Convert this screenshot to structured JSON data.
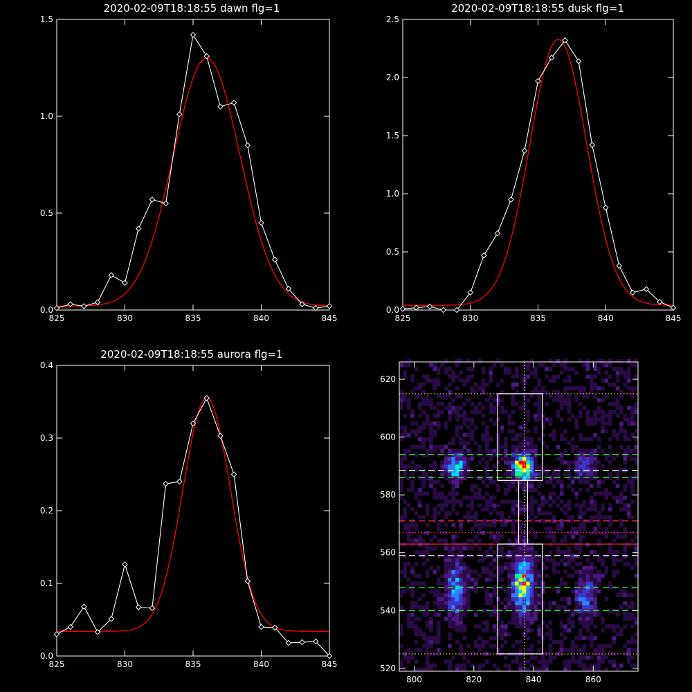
{
  "chart_data": [
    {
      "type": "line",
      "title": "2020-02-09T18:18:55 dawn flg=1",
      "xlim": [
        825,
        845
      ],
      "ylim": [
        0.0,
        1.5
      ],
      "xticks": [
        825,
        830,
        835,
        840,
        845
      ],
      "yticks": [
        "0.0",
        "0.5",
        "1.0",
        "1.5"
      ],
      "series": [
        {
          "kind": "data",
          "color": "#ffffff",
          "markers": "diamond",
          "x": [
            825,
            826,
            827,
            828,
            829,
            830,
            831,
            832,
            833,
            834,
            835,
            836,
            837,
            838,
            839,
            840,
            841,
            842,
            843,
            844,
            845
          ],
          "y": [
            0.01,
            0.03,
            0.02,
            0.04,
            0.18,
            0.14,
            0.42,
            0.57,
            0.55,
            1.01,
            1.42,
            1.31,
            1.05,
            1.07,
            0.85,
            0.45,
            0.26,
            0.11,
            0.03,
            0.01,
            0.02
          ]
        },
        {
          "kind": "fit",
          "color": "#ff0000",
          "shape": "gaussian",
          "amplitude": 1.28,
          "center": 836.0,
          "sigma": 2.45,
          "offset": 0.02
        }
      ]
    },
    {
      "type": "line",
      "title": "2020-02-09T18:18:55 dusk flg=1",
      "xlim": [
        825,
        845
      ],
      "ylim": [
        0.0,
        2.5
      ],
      "xticks": [
        825,
        830,
        835,
        840,
        845
      ],
      "yticks": [
        "0.0",
        "0.5",
        "1.0",
        "1.5",
        "2.0",
        "2.5"
      ],
      "series": [
        {
          "kind": "data",
          "color": "#ffffff",
          "markers": "diamond",
          "x": [
            825,
            826,
            827,
            828,
            829,
            830,
            831,
            832,
            833,
            834,
            835,
            836,
            837,
            838,
            839,
            840,
            841,
            842,
            843,
            844,
            845
          ],
          "y": [
            0.01,
            0.02,
            0.03,
            0.0,
            0.0,
            0.15,
            0.47,
            0.66,
            0.95,
            1.37,
            1.97,
            2.17,
            2.32,
            2.14,
            1.42,
            0.88,
            0.38,
            0.15,
            0.18,
            0.07,
            0.02
          ]
        },
        {
          "kind": "fit",
          "color": "#ff0000",
          "shape": "gaussian",
          "amplitude": 2.29,
          "center": 836.5,
          "sigma": 2.1,
          "offset": 0.04
        }
      ]
    },
    {
      "type": "line",
      "title": "2020-02-09T18:18:55 aurora flg=1",
      "xlim": [
        825,
        845
      ],
      "ylim": [
        0.0,
        0.4
      ],
      "xticks": [
        825,
        830,
        835,
        840,
        845
      ],
      "yticks": [
        "0.0",
        "0.1",
        "0.2",
        "0.3",
        "0.4"
      ],
      "series": [
        {
          "kind": "data",
          "color": "#ffffff",
          "markers": "diamond",
          "x": [
            825,
            826,
            827,
            828,
            829,
            830,
            831,
            832,
            833,
            834,
            835,
            836,
            837,
            838,
            839,
            840,
            841,
            842,
            843,
            844,
            845
          ],
          "y": [
            0.03,
            0.04,
            0.068,
            0.033,
            0.051,
            0.126,
            0.067,
            0.066,
            0.237,
            0.24,
            0.32,
            0.355,
            0.303,
            0.25,
            0.103,
            0.04,
            0.039,
            0.018,
            0.019,
            0.02,
            0.0
          ]
        },
        {
          "kind": "fit",
          "color": "#ff0000",
          "shape": "gaussian",
          "amplitude": 0.321,
          "center": 836.0,
          "sigma": 1.75,
          "offset": 0.034
        }
      ]
    },
    {
      "type": "heatmap",
      "title": "",
      "xlim": [
        795,
        875
      ],
      "ylim": [
        519,
        626
      ],
      "xticks": [
        800,
        820,
        840,
        860
      ],
      "yticks": [
        520,
        540,
        560,
        580,
        600,
        620
      ],
      "colormap": [
        "#000000",
        "#2a0a45",
        "#4a1880",
        "#3838cc",
        "#2f7fff",
        "#00d4ff",
        "#00ff90",
        "#ffff00",
        "#ff0000"
      ],
      "cell_size": [
        1.25,
        1.35
      ],
      "blobs": [
        {
          "x": 814,
          "y": 590,
          "sx": 2.2,
          "sy": 3.0,
          "a": 0.62
        },
        {
          "x": 814,
          "y": 547,
          "sx": 2.3,
          "sy": 6.0,
          "a": 0.5
        },
        {
          "x": 836.5,
          "y": 590,
          "sx": 2.2,
          "sy": 3.2,
          "a": 0.95
        },
        {
          "x": 836.5,
          "y": 549,
          "sx": 2.4,
          "sy": 6.5,
          "a": 0.82
        },
        {
          "x": 857.5,
          "y": 590,
          "sx": 2.2,
          "sy": 3.0,
          "a": 0.38
        },
        {
          "x": 857.5,
          "y": 545,
          "sx": 2.0,
          "sy": 5.0,
          "a": 0.42
        }
      ],
      "hlines": [
        {
          "y": 615,
          "color": "#ffff00",
          "style": "dotted"
        },
        {
          "y": 594,
          "color": "#33ff33",
          "style": "dashed"
        },
        {
          "y": 588.5,
          "color": "#ffffff",
          "style": "dashed"
        },
        {
          "y": 586,
          "color": "#33ff33",
          "style": "dashed"
        },
        {
          "y": 571,
          "color": "#ff3333",
          "style": "dashed"
        },
        {
          "y": 567,
          "color": "#ff3333",
          "style": "dotted"
        },
        {
          "y": 563,
          "color": "#ff3333",
          "style": "solid"
        },
        {
          "y": 559,
          "color": "#ffffff",
          "style": "dashed"
        },
        {
          "y": 548,
          "color": "#33ff33",
          "style": "dashed"
        },
        {
          "y": 540,
          "color": "#33ff33",
          "style": "dashed"
        },
        {
          "y": 525,
          "color": "#ffff00",
          "style": "dotted"
        }
      ],
      "vlines": [
        {
          "x": 837,
          "color": "#ffffff",
          "style": "dotted"
        }
      ],
      "boxes": [
        {
          "x0": 828,
          "x1": 843,
          "y0": 585,
          "y1": 615
        },
        {
          "x0": 835,
          "x1": 838,
          "y0": 563,
          "y1": 585
        },
        {
          "x0": 828,
          "x1": 843,
          "y0": 525,
          "y1": 563
        }
      ]
    }
  ]
}
